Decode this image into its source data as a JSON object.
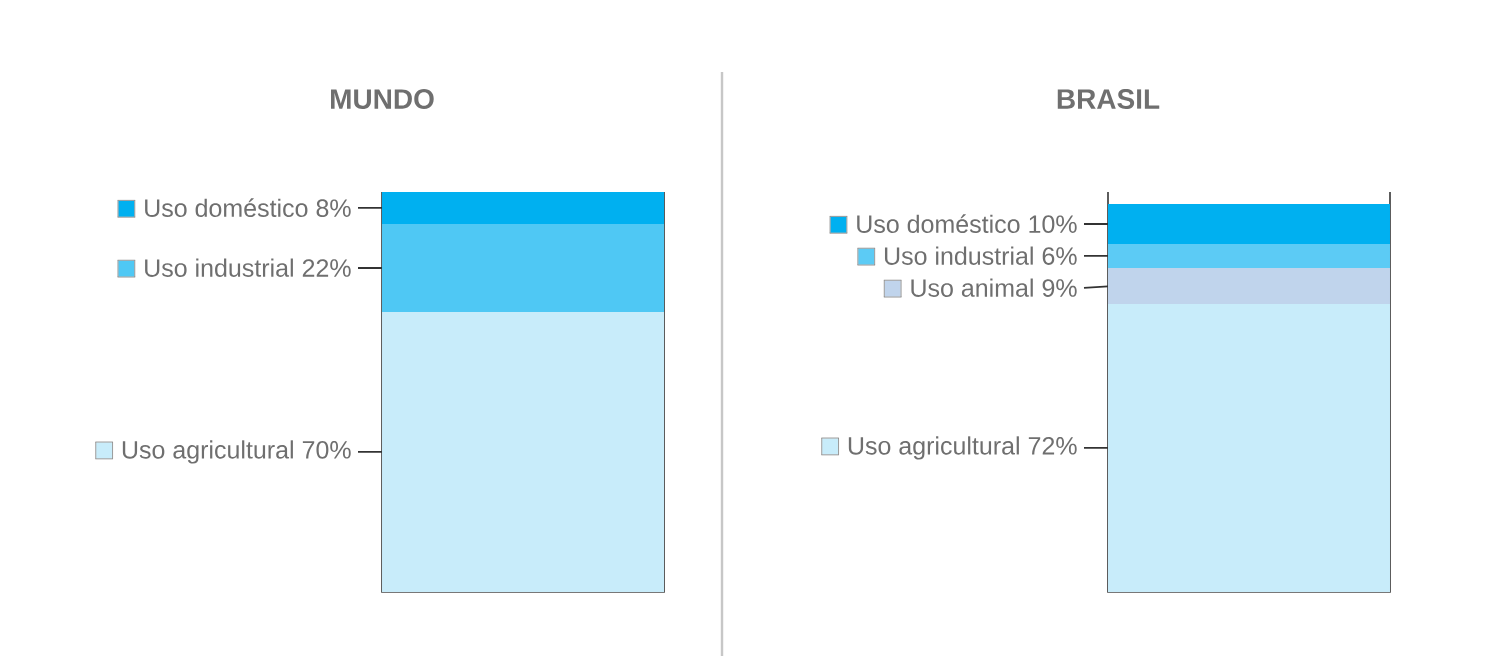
{
  "chart_data": [
    {
      "type": "bar",
      "title": "MUNDO",
      "stacked": true,
      "legend": "left",
      "categories": [
        null
      ],
      "ylim": [
        0,
        100
      ],
      "tick_labels": false,
      "series": [
        {
          "name": "Uso agricultural",
          "color": "#c8ecfa",
          "values": [
            70
          ],
          "value_labels": [
            "70%"
          ]
        },
        {
          "name": "Uso industrial",
          "color": "#4fc8f4",
          "values": [
            22
          ],
          "value_labels": [
            "22%"
          ]
        },
        {
          "name": "Uso doméstico",
          "color": "#00b0f0",
          "values": [
            8
          ],
          "value_labels": [
            "8%"
          ]
        }
      ]
    },
    {
      "type": "bar",
      "title": "BRASIL",
      "stacked": true,
      "legend": "left",
      "categories": [
        null
      ],
      "ylim": [
        0,
        100
      ],
      "tick_labels": false,
      "series": [
        {
          "name": "Uso agricultural",
          "color": "#c8ecfa",
          "values": [
            72
          ],
          "value_labels": [
            "72%"
          ]
        },
        {
          "name": "Uso animal",
          "color": "#c0d4ec",
          "values": [
            9
          ],
          "value_labels": [
            "9%"
          ]
        },
        {
          "name": "Uso industrial",
          "color": "#5ccbf5",
          "values": [
            6
          ],
          "value_labels": [
            "6%"
          ]
        },
        {
          "name": "Uso doméstico",
          "color": "#00b0f0",
          "values": [
            10
          ],
          "value_labels": [
            "10%"
          ]
        }
      ]
    }
  ]
}
